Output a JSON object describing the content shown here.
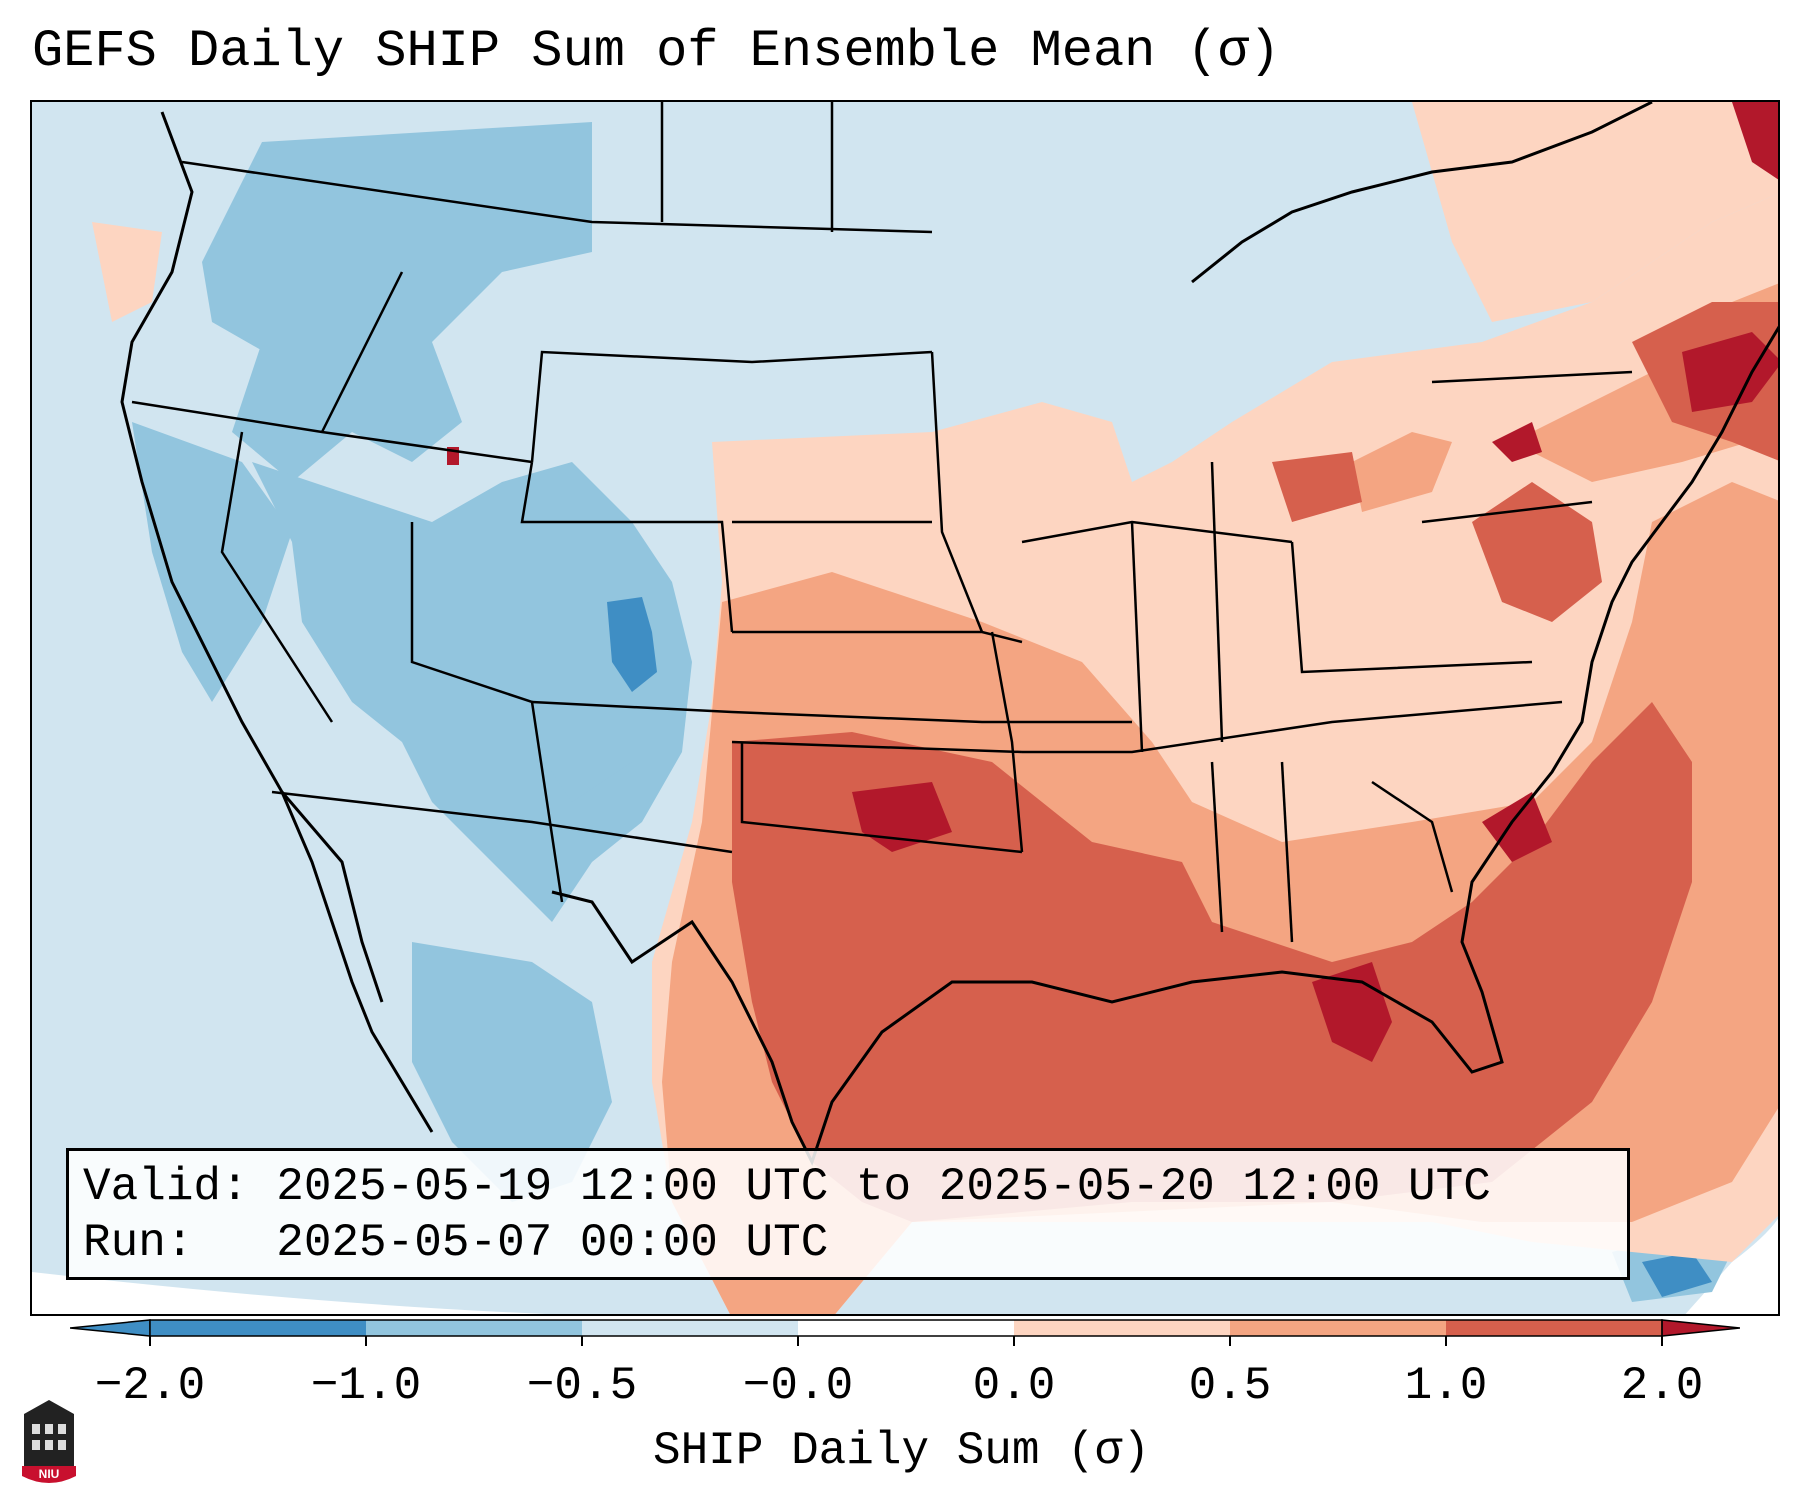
{
  "title": "GEFS Daily SHIP Sum of Ensemble Mean (σ)",
  "valid_line": "Valid: 2025-05-19 12:00 UTC to 2025-05-20 12:00 UTC",
  "run_line": "Run:   2025-05-07 00:00 UTC",
  "colorbar": {
    "title": "SHIP Daily Sum (σ)",
    "tick_labels": [
      "−2.0",
      "−1.0",
      "−0.5",
      "−0.0",
      "0.0",
      "0.5",
      "1.0",
      "2.0"
    ],
    "colors": [
      "#3f8ec4",
      "#92c5de",
      "#d1e5f0",
      "#ffffff",
      "#fdd5c1",
      "#f4a582",
      "#d6604d",
      "#b2182b"
    ]
  },
  "logo_text": "NIU",
  "map": {
    "region": "Continental United States",
    "field": "SHIP daily sum anomaly (σ)"
  }
}
